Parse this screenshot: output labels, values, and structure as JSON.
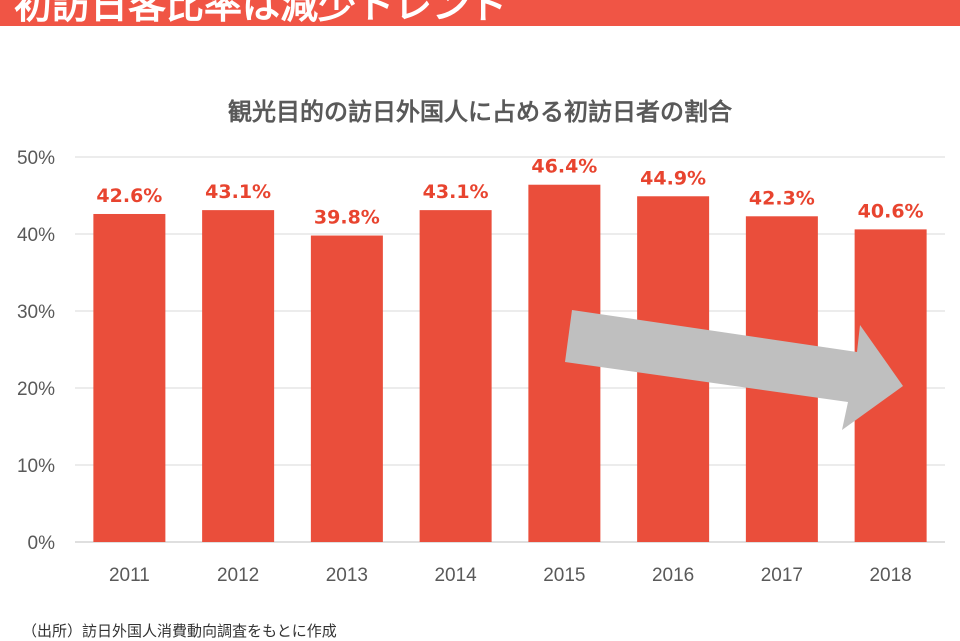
{
  "header": {
    "title": "初訪日客比率は減少トレンド"
  },
  "footer": {
    "source": "（出所）訪日外国人消費動向調査をもとに作成"
  },
  "chart_data": {
    "type": "bar",
    "title": "観光目的の訪日外国人に占める初訪日者の割合",
    "categories": [
      "2011",
      "2012",
      "2013",
      "2014",
      "2015",
      "2016",
      "2017",
      "2018"
    ],
    "values": [
      42.6,
      43.1,
      39.8,
      43.1,
      46.4,
      44.9,
      42.3,
      40.6
    ],
    "data_labels": [
      "42.6%",
      "43.1%",
      "39.8%",
      "43.1%",
      "46.4%",
      "44.9%",
      "42.3%",
      "40.6%"
    ],
    "ylim": [
      0,
      50
    ],
    "yticks": [
      "0%",
      "10%",
      "20%",
      "30%",
      "40%",
      "50%"
    ],
    "grid": true,
    "annotation": "downward-trend-arrow",
    "colors": {
      "bar": "#ea4e3b",
      "label": "#e8442f",
      "arrow": "#bfbfbf",
      "header": "#f05545"
    }
  }
}
